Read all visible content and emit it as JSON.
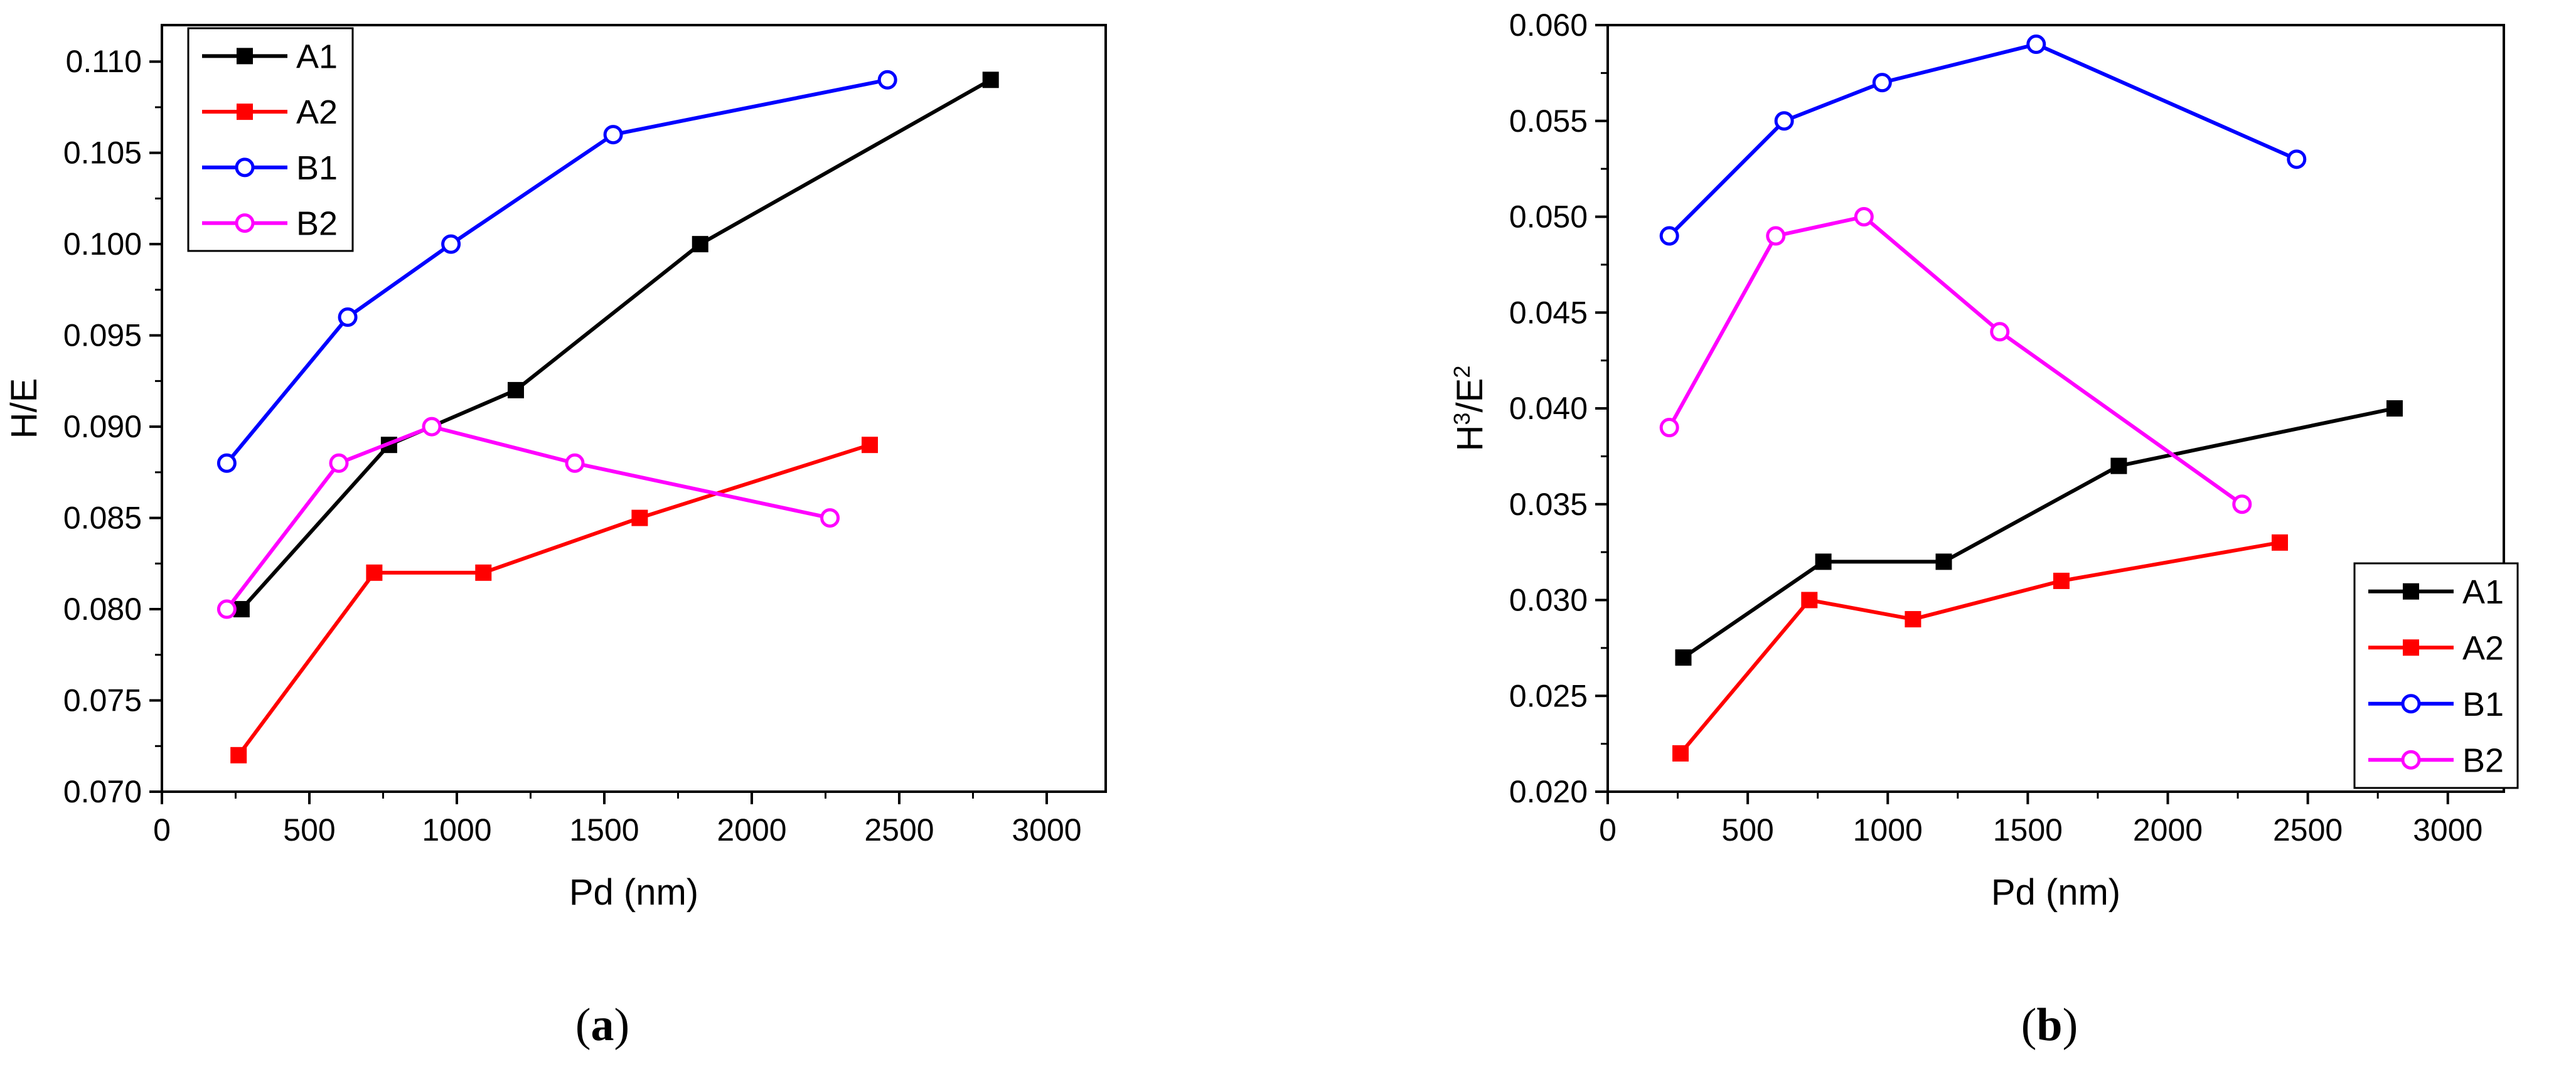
{
  "chart_data": [
    {
      "type": "line",
      "panel_label": "a",
      "title": "",
      "xlabel": "Pd (nm)",
      "ylabel": "H/E",
      "xlim": [
        0,
        3200
      ],
      "ylim": [
        0.07,
        0.112
      ],
      "xticks": [
        0,
        500,
        1000,
        1500,
        2000,
        2500,
        3000
      ],
      "xtick_labels": [
        "0",
        "500",
        "1000",
        "1500",
        "2000",
        "2500",
        "3000"
      ],
      "yticks": [
        0.07,
        0.075,
        0.08,
        0.085,
        0.09,
        0.095,
        0.1,
        0.105,
        0.11
      ],
      "ytick_labels": [
        "0.070",
        "0.075",
        "0.080",
        "0.085",
        "0.090",
        "0.095",
        "0.100",
        "0.105",
        "0.110"
      ],
      "grid": false,
      "legend_position": "top-left",
      "series": [
        {
          "name": "A1",
          "color": "#000000",
          "marker": "filled-square",
          "x": [
            270,
            770,
            1200,
            1825,
            2810
          ],
          "y": [
            0.08,
            0.089,
            0.092,
            0.1,
            0.109
          ]
        },
        {
          "name": "A2",
          "color": "#ff0000",
          "marker": "filled-square",
          "x": [
            260,
            720,
            1090,
            1620,
            2400
          ],
          "y": [
            0.072,
            0.082,
            0.082,
            0.085,
            0.089
          ]
        },
        {
          "name": "B1",
          "color": "#0000ff",
          "marker": "open-circle",
          "x": [
            220,
            630,
            980,
            1530,
            2460
          ],
          "y": [
            0.088,
            0.096,
            0.1,
            0.106,
            0.109
          ]
        },
        {
          "name": "B2",
          "color": "#ff00ff",
          "marker": "open-circle",
          "x": [
            220,
            600,
            915,
            1400,
            2265
          ],
          "y": [
            0.08,
            0.088,
            0.09,
            0.088,
            0.085
          ]
        }
      ]
    },
    {
      "type": "line",
      "panel_label": "b",
      "title": "",
      "xlabel": "Pd (nm)",
      "ylabel_main": "H",
      "ylabel_sup1": "3",
      "ylabel_mid": "/E",
      "ylabel_sup2": "2",
      "xlim": [
        0,
        3200
      ],
      "ylim": [
        0.02,
        0.06
      ],
      "xticks": [
        0,
        500,
        1000,
        1500,
        2000,
        2500,
        3000
      ],
      "xtick_labels": [
        "0",
        "500",
        "1000",
        "1500",
        "2000",
        "2500",
        "3000"
      ],
      "yticks": [
        0.02,
        0.025,
        0.03,
        0.035,
        0.04,
        0.045,
        0.05,
        0.055,
        0.06
      ],
      "ytick_labels": [
        "0.020",
        "0.025",
        "0.030",
        "0.035",
        "0.040",
        "0.045",
        "0.050",
        "0.055",
        "0.060"
      ],
      "grid": false,
      "legend_position": "bottom-right",
      "series": [
        {
          "name": "A1",
          "color": "#000000",
          "marker": "filled-square",
          "x": [
            270,
            770,
            1200,
            1825,
            2810
          ],
          "y": [
            0.027,
            0.032,
            0.032,
            0.037,
            0.04
          ]
        },
        {
          "name": "A2",
          "color": "#ff0000",
          "marker": "filled-square",
          "x": [
            260,
            720,
            1090,
            1620,
            2400
          ],
          "y": [
            0.022,
            0.03,
            0.029,
            0.031,
            0.033
          ]
        },
        {
          "name": "B1",
          "color": "#0000ff",
          "marker": "open-circle",
          "x": [
            220,
            630,
            980,
            1530,
            2460
          ],
          "y": [
            0.049,
            0.055,
            0.057,
            0.059,
            0.053
          ]
        },
        {
          "name": "B2",
          "color": "#ff00ff",
          "marker": "open-circle",
          "x": [
            220,
            600,
            915,
            1400,
            2265
          ],
          "y": [
            0.039,
            0.049,
            0.05,
            0.044,
            0.035
          ]
        }
      ]
    }
  ],
  "captions": {
    "a_open": "(",
    "a_label": "a",
    "a_close": ")",
    "b_open": "(",
    "b_label": "b",
    "b_close": ")"
  }
}
